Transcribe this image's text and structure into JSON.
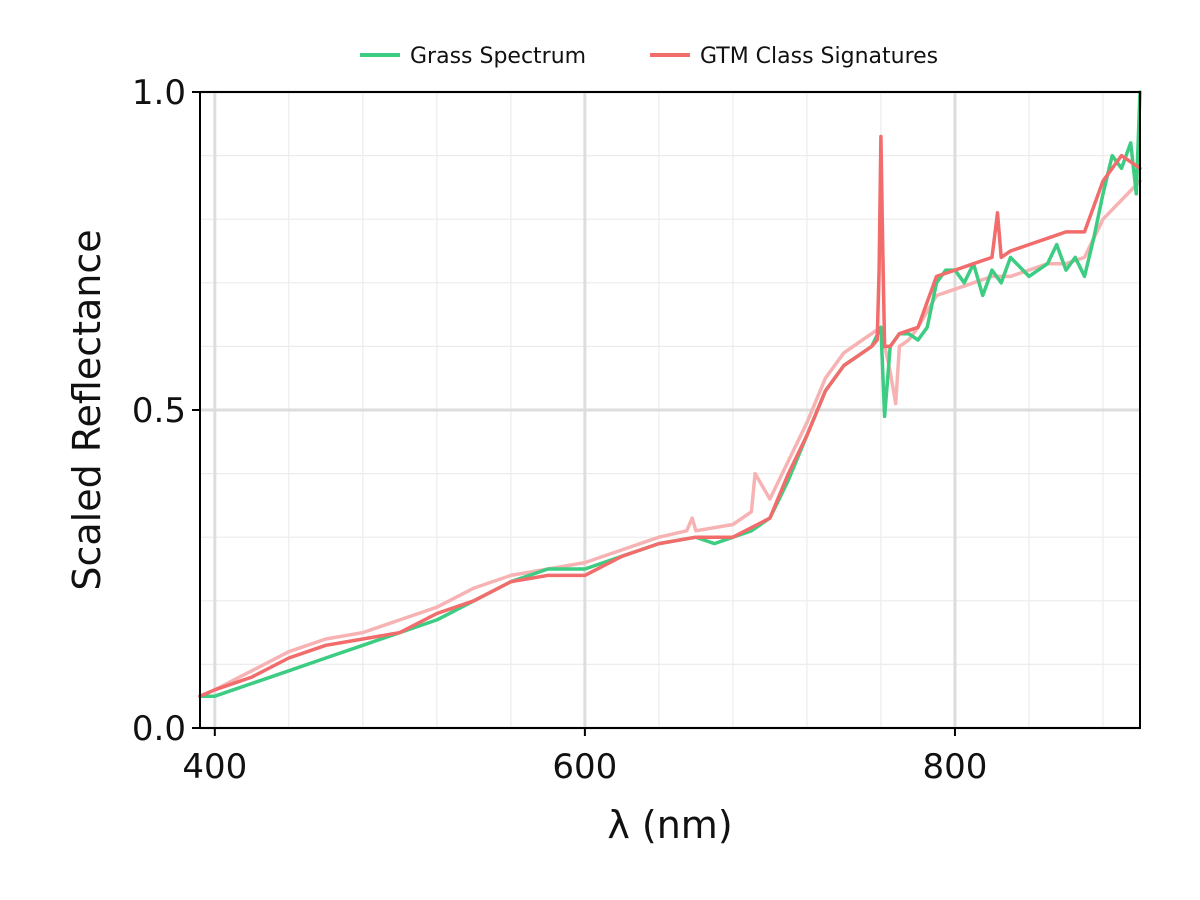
{
  "chart_data": {
    "type": "line",
    "title": "",
    "xlabel": "λ (nm)",
    "ylabel": "Scaled Reflectance",
    "xlim": [
      392,
      900
    ],
    "ylim": [
      0.0,
      1.0
    ],
    "xticks": [
      400,
      600,
      800
    ],
    "xtick_labels": [
      "400",
      "600",
      "800"
    ],
    "yticks": [
      0.0,
      0.5,
      1.0
    ],
    "ytick_labels": [
      "0.0",
      "0.5",
      "1.0"
    ],
    "grid": true,
    "legend": {
      "position": "top-center",
      "entries": [
        "Grass Spectrum",
        "GTM Class Signatures"
      ]
    },
    "series": [
      {
        "name": "Grass Spectrum",
        "color": "#3ccc82",
        "x": [
          392,
          400,
          410,
          420,
          440,
          460,
          480,
          500,
          520,
          540,
          560,
          580,
          600,
          620,
          640,
          660,
          670,
          680,
          690,
          700,
          710,
          720,
          730,
          740,
          750,
          755,
          760,
          762,
          765,
          770,
          775,
          780,
          785,
          790,
          795,
          800,
          805,
          810,
          815,
          820,
          825,
          830,
          840,
          850,
          855,
          860,
          865,
          870,
          875,
          880,
          885,
          890,
          895,
          898,
          900
        ],
        "y": [
          0.05,
          0.05,
          0.06,
          0.07,
          0.09,
          0.11,
          0.13,
          0.15,
          0.17,
          0.2,
          0.23,
          0.25,
          0.25,
          0.27,
          0.29,
          0.3,
          0.29,
          0.3,
          0.31,
          0.33,
          0.39,
          0.46,
          0.53,
          0.57,
          0.59,
          0.6,
          0.63,
          0.49,
          0.6,
          0.62,
          0.62,
          0.61,
          0.63,
          0.7,
          0.72,
          0.72,
          0.7,
          0.73,
          0.68,
          0.72,
          0.7,
          0.74,
          0.71,
          0.73,
          0.76,
          0.72,
          0.74,
          0.71,
          0.77,
          0.84,
          0.9,
          0.88,
          0.92,
          0.84,
          1.0
        ]
      },
      {
        "name": "GTM Class Signatures",
        "color": "#f26c6c",
        "x": [
          392,
          400,
          420,
          440,
          460,
          480,
          500,
          520,
          540,
          560,
          580,
          600,
          620,
          640,
          660,
          680,
          700,
          710,
          720,
          730,
          740,
          750,
          755,
          758,
          759,
          760,
          761,
          762,
          765,
          770,
          780,
          790,
          800,
          810,
          820,
          823,
          825,
          830,
          840,
          850,
          860,
          870,
          880,
          890,
          900
        ],
        "y": [
          0.05,
          0.06,
          0.08,
          0.11,
          0.13,
          0.14,
          0.15,
          0.18,
          0.2,
          0.23,
          0.24,
          0.24,
          0.27,
          0.29,
          0.3,
          0.3,
          0.33,
          0.4,
          0.46,
          0.53,
          0.57,
          0.59,
          0.6,
          0.61,
          0.72,
          0.93,
          0.75,
          0.6,
          0.6,
          0.62,
          0.63,
          0.71,
          0.72,
          0.73,
          0.74,
          0.81,
          0.74,
          0.75,
          0.76,
          0.77,
          0.78,
          0.78,
          0.86,
          0.9,
          0.88
        ]
      },
      {
        "name": "",
        "color": "#f7b3b3",
        "x": [
          392,
          400,
          420,
          440,
          460,
          480,
          500,
          520,
          540,
          560,
          580,
          600,
          620,
          640,
          655,
          658,
          660,
          680,
          690,
          692,
          700,
          710,
          720,
          730,
          740,
          750,
          760,
          765,
          768,
          770,
          775,
          780,
          790,
          800,
          810,
          820,
          830,
          840,
          850,
          860,
          870,
          880,
          890,
          900
        ],
        "y": [
          0.05,
          0.06,
          0.09,
          0.12,
          0.14,
          0.15,
          0.17,
          0.19,
          0.22,
          0.24,
          0.25,
          0.26,
          0.28,
          0.3,
          0.31,
          0.33,
          0.31,
          0.32,
          0.34,
          0.4,
          0.36,
          0.42,
          0.48,
          0.55,
          0.59,
          0.61,
          0.63,
          0.56,
          0.51,
          0.6,
          0.61,
          0.63,
          0.68,
          0.69,
          0.7,
          0.71,
          0.71,
          0.72,
          0.73,
          0.73,
          0.74,
          0.8,
          0.83,
          0.86
        ]
      }
    ]
  }
}
